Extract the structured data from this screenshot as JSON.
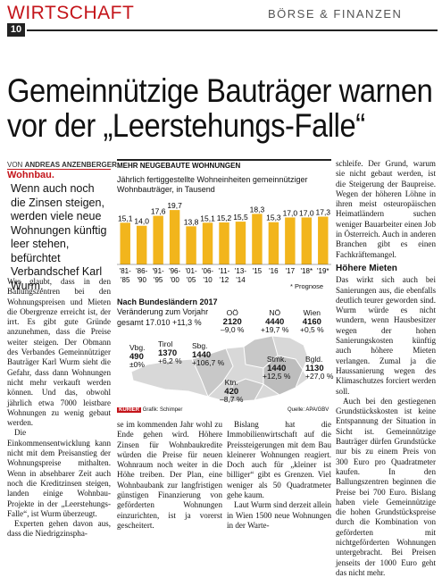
{
  "header": {
    "section": "WIRTSCHAFT",
    "subsection": "BÖRSE & FINANZEN",
    "page_number": "10"
  },
  "article": {
    "headline_line1": "Gemeinnützige Bauträger warnen",
    "headline_line2": "vor der „Leerstehungs-Falle“",
    "byline_prefix": "VON",
    "byline_author": "ANDREAS ANZENBERGER",
    "kicker": "Wohnbau.",
    "intro": "Wenn auch noch die Zinsen steigen, werden viele neue Wohnungen künftig leer stehen, befürchtet Verbandschef Karl Wurm.",
    "col1": "Wer glaubt, dass in den Ballungszentren bei den Wohnungspreisen und Mieten die Obergrenze erreicht ist, der irrt. Es gibt gute Gründe anzunehmen, dass die Preise weiter steigen. Der Obmann des Verbandes Gemeinnütziger Bauträger Karl Wurm sieht die Gefahr, dass dann Wohnungen nicht mehr verkauft werden können. Und das, obwohl jährlich etwa 7000 leistbare Wohnungen zu wenig gebaut werden.",
    "col1b": "Die Einkommensentwicklung kann nicht mit dem Preisanstieg der Wohnungspreise mithalten. Wenn in absehbarer Zeit auch noch die Kreditzinsen steigen, landen einige Wohnbau-Projekte in der „Leerstehungs-Falle“, ist Wurm überzeugt.",
    "col1c": "Experten gehen davon aus, dass die Niedrigzinspha-",
    "col2": "se im kommenden Jahr wohl zu Ende gehen wird. Höhere Zinsen für Wohnbaukredite würden die Preise für neuen Wohnraum noch weiter in die Höhe treiben. Der Plan, eine Wohnbaubank zur langfristigen günstigen Finanzierung von geförderten Wohnungen einzurichten, ist ja vorerst gescheitert.",
    "col3": "Bislang hat die Immobilienwirtschaft auf die Preissteigerungen mit dem Bau kleinerer Wohnungen reagiert. Doch auch für „kleiner ist billiger“ gibt es Grenzen. Viel weniger als 50 Quadratmeter gehe kaum.",
    "col3b": "Laut Wurm sind derzeit allein in Wien 1500 neue Wohnungen in der Warte-",
    "col4": "schleife. Der Grund, warum sie nicht gebaut werden, ist die Steigerung der Baupreise. Wegen der höheren Löhne in ihren meist osteuropäischen Heimatländern suchen weniger Bauarbeiter einen Job in Österreich. Auch in anderen Branchen gibt es einen Fachkräftemangel.",
    "subhead": "Höhere Mieten",
    "col4b": "Das wirkt sich auch bei Sanierungen aus, die ebenfalls deutlich teurer geworden sind. Wurm würde es nicht wundern, wenn Hausbesitzer wegen der hohen Sanierungskosten künftig auch höhere Mieten verlangen. Zumal ja die Haussanierung wegen des Klimaschutzes forciert werden soll.",
    "col4c": "Auch bei den gestiegenen Grundstückskosten ist keine Entspannung der Situation in Sicht ist. Gemeinnützige Bauträger dürfen Grundstücke nur bis zu einem Preis von 300 Euro pro Quadratmeter kaufen. In den Ballungszentren beginnen die Preise bei 700 Euro. Bislang haben viele Gemeinnützige die hohen Grundstückspreise durch die Kombination von geförderten mit nichtgeförderten Wohnungen untergebracht. Bei Preisen jenseits der 1000 Euro geht das nicht mehr."
  },
  "chart_data": {
    "type": "bar",
    "title": "MEHR NEUGEBAUTE WOHNUNGEN",
    "subtitle": "Jährlich fertiggestellte Wohneinheiten gemeinnütziger Wohnbauträger, in Tausend",
    "categories": [
      "'81–'85",
      "'86–'90",
      "'91–'95",
      "'96–'00",
      "'01–'05",
      "'06–'10",
      "'11–'12",
      "'13–'14",
      "'15",
      "'16",
      "'17",
      "'18*",
      "'19*"
    ],
    "categories_top": [
      "'81-",
      "'86-",
      "'91-",
      "'96-",
      "'01-",
      "'06-",
      "'11-",
      "'13-",
      "'15",
      "'16",
      "'17",
      "'18*",
      "'19*"
    ],
    "categories_bottom": [
      "'85",
      "'90",
      "'95",
      "'00",
      "'05",
      "'10",
      "'12",
      "'14",
      "",
      "",
      "",
      "",
      ""
    ],
    "values": [
      15.1,
      14.0,
      17.6,
      19.7,
      13.8,
      15.1,
      15.2,
      15.5,
      18.3,
      15.3,
      17.0,
      17.0,
      17.3
    ],
    "value_labels": [
      "15,1",
      "14,0",
      "17,6",
      "19,7",
      "13,8",
      "15,1",
      "15,2",
      "15,5",
      "18,3",
      "15,3",
      "17,0",
      "17,0",
      "17,3"
    ],
    "ylim": [
      0,
      22
    ],
    "bar_color": "#f2b51c",
    "footnote": "* Prognose"
  },
  "states": {
    "title": "Nach Bundesländern 2017",
    "subtitle": "Veränderung zum Vorjahr",
    "total": "gesamt 17.010  +11,3 %",
    "regions": [
      {
        "name": "Vbg.",
        "value": "490",
        "change": "±0%"
      },
      {
        "name": "Tirol",
        "value": "1370",
        "change": "+6,2 %"
      },
      {
        "name": "Sbg.",
        "value": "1440",
        "change": "+106,7 %"
      },
      {
        "name": "OÖ",
        "value": "2120",
        "change": "–9,0 %"
      },
      {
        "name": "NÖ",
        "value": "4440",
        "change": "+19,7 %"
      },
      {
        "name": "Wien",
        "value": "4160",
        "change": "+0,5 %"
      },
      {
        "name": "Stmk.",
        "value": "1440",
        "change": "+12,5 %"
      },
      {
        "name": "Bgld.",
        "value": "1130",
        "change": "+27,0 %"
      },
      {
        "name": "Ktn.",
        "value": "420",
        "change": "–8,7 %"
      }
    ],
    "credit_brand": "KURIER",
    "credit": "Grafik: Schimper",
    "source": "Quelle: APA/GBV"
  }
}
